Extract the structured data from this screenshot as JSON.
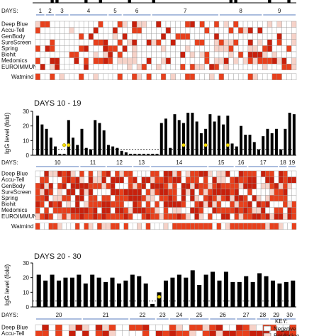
{
  "chart_data": [
    {
      "type": "heatmap",
      "panel": "days-1-9",
      "title": "",
      "day_label": "DAYS:",
      "day_groups": [
        {
          "label": "1",
          "cols": 2
        },
        {
          "label": "2",
          "cols": 2
        },
        {
          "label": "3",
          "cols": 3
        },
        {
          "label": "4",
          "cols": 8
        },
        {
          "label": "5",
          "cols": 3
        },
        {
          "label": "6",
          "cols": 6
        },
        {
          "label": "7",
          "cols": 14
        },
        {
          "label": "8",
          "cols": 9
        },
        {
          "label": "9",
          "cols": 7
        }
      ],
      "tests": [
        "Deep Blue",
        "Accu-Tell",
        "GenBody",
        "SureScreen",
        "Spring",
        "Biohit",
        "Medomics",
        "EUROIMMUN"
      ],
      "extra_row": "Watmind",
      "levels": {
        "negative": 0,
        "borderline": 1,
        "positive": 2
      }
    },
    {
      "type": "bar",
      "panel": "days-10-19",
      "title": "DAYS 10 - 19",
      "ylabel": "IgG level (fold)",
      "ylim": [
        0,
        30
      ],
      "yticks": [
        0,
        10,
        20,
        30
      ],
      "cutoff": 4,
      "values": [
        27,
        21,
        18,
        12,
        6,
        1,
        1,
        24,
        12,
        7,
        18,
        5,
        4,
        24,
        22,
        17,
        7,
        6,
        5,
        3,
        2,
        1,
        1,
        1,
        1,
        1,
        1,
        1,
        22,
        25,
        5,
        28,
        24,
        22,
        29,
        29,
        23,
        15,
        18,
        28,
        23,
        27,
        21,
        27,
        8,
        6,
        20,
        14,
        14,
        9,
        4,
        13,
        18,
        15,
        18,
        4,
        18,
        29,
        28
      ],
      "below_cutoff_markers": [
        6,
        7,
        33,
        38,
        43
      ],
      "day_label": "DAYS:",
      "day_groups": [
        {
          "label": "10",
          "cols": 10
        },
        {
          "label": "11",
          "cols": 6
        },
        {
          "label": "12",
          "cols": 6
        },
        {
          "label": "13",
          "cols": 4
        },
        {
          "label": "14",
          "cols": 13
        },
        {
          "label": "15",
          "cols": 6
        },
        {
          "label": "16",
          "cols": 3
        },
        {
          "label": "17",
          "cols": 7
        },
        {
          "label": "18",
          "cols": 2
        },
        {
          "label": "19",
          "cols": 2
        }
      ],
      "tests": [
        "Deep Blue",
        "Accu-Tell",
        "GenBody",
        "SureScreen",
        "Spring",
        "Biohit",
        "Medomics",
        "EUROIMMUN"
      ],
      "extra_row": "Watmind"
    },
    {
      "type": "bar",
      "panel": "days-20-30",
      "title": "DAYS 20 - 30",
      "ylabel": "IgG level (fold)",
      "ylim": [
        0,
        30
      ],
      "yticks": [
        0,
        10,
        20,
        30
      ],
      "cutoff": 4,
      "values": [
        22,
        18,
        22,
        18,
        20,
        20,
        22,
        16,
        22,
        20,
        17,
        20,
        16,
        18,
        22,
        21,
        16,
        2,
        10,
        18,
        20,
        22,
        20,
        25,
        15,
        22,
        24,
        18,
        24,
        17,
        17,
        21,
        17,
        23,
        21,
        18,
        16,
        17,
        18
      ],
      "below_cutoff_markers": [
        18
      ],
      "day_label": "DAYS:",
      "day_groups": [
        {
          "label": "20",
          "cols": 7
        },
        {
          "label": "21",
          "cols": 7
        },
        {
          "label": "22",
          "cols": 4
        },
        {
          "label": "23",
          "cols": 2
        },
        {
          "label": "24",
          "cols": 3
        },
        {
          "label": "25",
          "cols": 3
        },
        {
          "label": "26",
          "cols": 4
        },
        {
          "label": "27",
          "cols": 3
        },
        {
          "label": "28",
          "cols": 2
        },
        {
          "label": "29",
          "cols": 2
        },
        {
          "label": "30",
          "cols": 2
        }
      ],
      "tests": [
        "Deep Blue",
        "Accu-Tell"
      ]
    }
  ],
  "key": {
    "title": "KEY:",
    "items": [
      {
        "label": "Negative",
        "color": "#ffffff"
      },
      {
        "label": "Borderline",
        "color": "#f6d2c8"
      }
    ]
  },
  "colors": {
    "negative": "#ffffff",
    "borderline": "#f6d2c8",
    "positive": "#e8401c",
    "strong": "#c8200c",
    "bar": "#000000",
    "marker": "#f2d900",
    "grid": "#999999"
  }
}
